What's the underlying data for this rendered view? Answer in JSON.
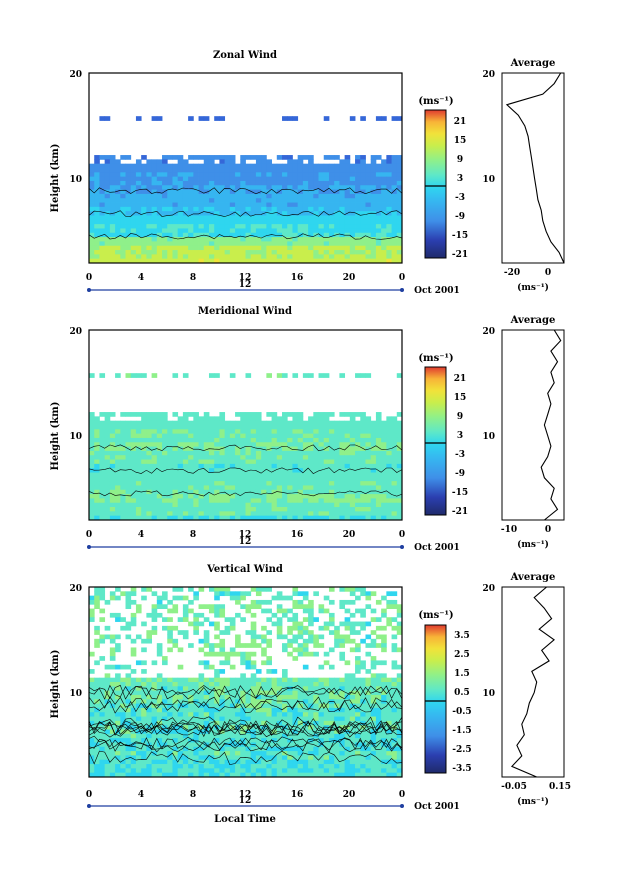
{
  "panels": [
    {
      "title": "Zonal Wind",
      "ylabel": "Height (km)",
      "y_ticks": [
        "20",
        "10"
      ],
      "x_ticks": [
        "0",
        "4",
        "8",
        "12",
        "16",
        "20",
        "0"
      ],
      "date_label": "12",
      "month_label": "Oct 2001",
      "colorbar": {
        "unit": "(ms⁻¹)",
        "ticks": [
          "21",
          "15",
          "9",
          "3",
          "-3",
          "-9",
          "-15",
          "-21"
        ]
      },
      "average": {
        "title": "Average",
        "y_ticks": [
          "20",
          "10"
        ],
        "x_ticks": [
          "-20",
          "0"
        ],
        "xlabel": "(ms⁻¹)"
      }
    },
    {
      "title": "Meridional Wind",
      "ylabel": "Height (km)",
      "y_ticks": [
        "20",
        "10"
      ],
      "x_ticks": [
        "0",
        "4",
        "8",
        "12",
        "16",
        "20",
        "0"
      ],
      "date_label": "12",
      "month_label": "Oct 2001",
      "colorbar": {
        "unit": "(ms⁻¹)",
        "ticks": [
          "21",
          "15",
          "9",
          "3",
          "-3",
          "-9",
          "-15",
          "-21"
        ]
      },
      "average": {
        "title": "Average",
        "y_ticks": [
          "20",
          "10"
        ],
        "x_ticks": [
          "-10",
          "0"
        ],
        "xlabel": "(ms⁻¹)"
      }
    },
    {
      "title": "Vertical Wind",
      "ylabel": "Height (km)",
      "y_ticks": [
        "20",
        "10"
      ],
      "x_ticks": [
        "0",
        "4",
        "8",
        "12",
        "16",
        "20",
        "0"
      ],
      "date_label": "12",
      "month_label": "Oct 2001",
      "xlabel": "Local Time",
      "colorbar": {
        "unit": "(ms⁻¹)",
        "ticks": [
          "3.5",
          "2.5",
          "1.5",
          "0.5",
          "-0.5",
          "-1.5",
          "-2.5",
          "-3.5"
        ]
      },
      "average": {
        "title": "Average",
        "y_ticks": [
          "20",
          "10"
        ],
        "x_ticks": [
          "-0.05",
          "0.15"
        ],
        "xlabel": "(ms⁻¹)"
      }
    }
  ],
  "colors": {
    "scale": [
      "#1f2a6b",
      "#2b3fb0",
      "#3567d8",
      "#3f8fe8",
      "#36b5f0",
      "#2fd6ef",
      "#5ee8c8",
      "#8ff08a",
      "#c9ee4c",
      "#f1e23a",
      "#f8b437",
      "#f4783a",
      "#e03a2f"
    ]
  },
  "chart_data": [
    {
      "type": "heatmap",
      "title": "Zonal Wind",
      "xlabel": "",
      "ylabel": "Height (km)",
      "x": [
        0,
        4,
        8,
        12,
        16,
        20,
        24
      ],
      "ylim": [
        2,
        20
      ],
      "colorbar_range": [
        -24,
        24
      ],
      "profile": {
        "heights": [
          2,
          3,
          4,
          5,
          6,
          7,
          8,
          9,
          10,
          11,
          12,
          13,
          14,
          15,
          16,
          17,
          18,
          19,
          20
        ],
        "mean_u": [
          8,
          6,
          3,
          -2,
          -4,
          -6,
          -8,
          -9,
          -10,
          -11,
          -12,
          -13,
          -14,
          -14,
          -15,
          -16,
          -8,
          0,
          5
        ]
      },
      "average_profile": {
        "heights": [
          2,
          3,
          4,
          5,
          6,
          7,
          8,
          9,
          10,
          11,
          12,
          13,
          14,
          15,
          16,
          17,
          18,
          19,
          20
        ],
        "values": [
          8,
          5,
          0,
          -3,
          -5,
          -6,
          -8,
          -9,
          -10,
          -11,
          -12,
          -13,
          -14,
          -16,
          -20,
          -27,
          -5,
          2,
          6
        ],
        "xlim": [
          -30,
          8
        ]
      }
    },
    {
      "type": "heatmap",
      "title": "Meridional Wind",
      "xlabel": "",
      "ylabel": "Height (km)",
      "x": [
        0,
        4,
        8,
        12,
        16,
        20,
        24
      ],
      "ylim": [
        2,
        20
      ],
      "colorbar_range": [
        -24,
        24
      ],
      "profile": {
        "heights": [
          2,
          3,
          4,
          5,
          6,
          7,
          8,
          9,
          10,
          11,
          12,
          13,
          14,
          15,
          16,
          17,
          18,
          19,
          20
        ],
        "mean_v": [
          -2,
          1,
          2,
          1,
          0,
          -1,
          1,
          2,
          1,
          0,
          0,
          1,
          1,
          0,
          1,
          3,
          2,
          4,
          2
        ]
      },
      "average_profile": {
        "heights": [
          2,
          3,
          4,
          5,
          6,
          7,
          8,
          9,
          10,
          11,
          12,
          13,
          14,
          15,
          16,
          17,
          18,
          19,
          20
        ],
        "values": [
          -1,
          3,
          1,
          2,
          -1,
          -2,
          0,
          1,
          0,
          -1,
          0,
          1,
          0,
          2,
          1,
          3,
          1,
          4,
          2
        ],
        "xlim": [
          -14,
          5
        ]
      }
    },
    {
      "type": "heatmap",
      "title": "Vertical Wind",
      "xlabel": "Local Time",
      "ylabel": "Height (km)",
      "x": [
        0,
        4,
        8,
        12,
        16,
        20,
        24
      ],
      "ylim": [
        2,
        20
      ],
      "colorbar_range": [
        -4,
        4
      ],
      "profile": {
        "heights": [
          2,
          3,
          4,
          5,
          6,
          7,
          8,
          9,
          10,
          11,
          12,
          13,
          14,
          15,
          16,
          17,
          18,
          19,
          20
        ],
        "mean_w": [
          -0.2,
          -0.3,
          -0.1,
          -0.2,
          -0.1,
          0.0,
          -0.1,
          0.0,
          0.1,
          0.2,
          0.0,
          0.1,
          0.3,
          0.1,
          0.2,
          0.1,
          0.3,
          0.0,
          0.2
        ]
      },
      "average_profile": {
        "heights": [
          2,
          3,
          4,
          5,
          6,
          7,
          8,
          9,
          10,
          11,
          12,
          13,
          14,
          15,
          16,
          17,
          18,
          19,
          20
        ],
        "values": [
          0.06,
          -0.04,
          0.0,
          -0.02,
          0.01,
          0.0,
          0.02,
          0.03,
          0.05,
          0.06,
          0.04,
          0.11,
          0.08,
          0.13,
          0.07,
          0.12,
          0.09,
          0.05,
          0.1
        ],
        "xlim": [
          -0.08,
          0.17
        ]
      }
    }
  ]
}
